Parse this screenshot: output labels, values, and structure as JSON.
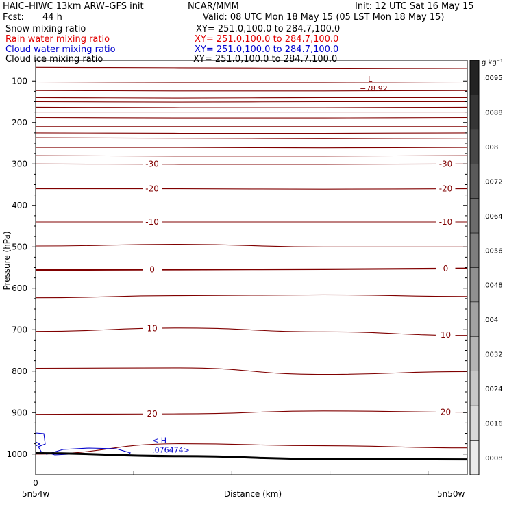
{
  "header": {
    "model": "HAIC–HIWC 13km ARW–GFS init",
    "org": "NCAR/MMM",
    "init": "Init: 12 UTC Sat 16 May 15",
    "fcst_label": "Fcst:",
    "fcst_value": "44 h",
    "valid": "Valid: 08 UTC Mon 18 May 15 (05 LST Mon 18 May 15)"
  },
  "fields": [
    {
      "name": "Snow mixing ratio",
      "xy": "XY= 251.0,100.0 to 284.7,100.0",
      "color": "#000000"
    },
    {
      "name": "Rain water mixing ratio",
      "xy": "XY= 251.0,100.0 to 284.7,100.0",
      "color": "#e00000"
    },
    {
      "name": "Cloud water mixing ratio",
      "xy": "XY= 251.0,100.0 to 284.7,100.0",
      "color": "#0000cc"
    },
    {
      "name": "Cloud ice mixing ratio",
      "xy": "XY= 251.0,100.0 to 284.7,100.0",
      "color": "#000000"
    }
  ],
  "chart_data": {
    "type": "contour",
    "ylabel": "Pressure (hPa)",
    "xlabel": "Distance (km)",
    "yticks": [
      100,
      200,
      300,
      400,
      500,
      600,
      700,
      800,
      900,
      1000
    ],
    "ylim": [
      1050,
      50
    ],
    "xlim": [
      0,
      1
    ],
    "x_origin_label": "0",
    "x_left_label": "5n54w",
    "x_right_label": "5n50w",
    "colorbar": {
      "unit": "g kg⁻¹",
      "levels": [
        ".0095",
        ".0088",
        ".008",
        ".0072",
        ".0064",
        ".0056",
        ".0048",
        ".004",
        ".0032",
        ".0024",
        ".0016",
        ".0008"
      ]
    },
    "isotherms": [
      {
        "p": [
          67,
          68,
          69,
          70
        ]
      },
      {
        "p": [
          102,
          103,
          103,
          102
        ]
      },
      {
        "p": [
          123,
          124,
          124,
          123
        ]
      },
      {
        "p": [
          140,
          141,
          140,
          140
        ]
      },
      {
        "p": [
          150,
          151,
          150,
          150
        ]
      },
      {
        "p": [
          163,
          164,
          164,
          163
        ]
      },
      {
        "p": [
          175,
          175,
          175,
          175
        ]
      },
      {
        "p": [
          188,
          189,
          189,
          188
        ]
      },
      {
        "p": [
          210,
          210,
          210,
          210
        ]
      },
      {
        "p": [
          225,
          226,
          226,
          225
        ]
      },
      {
        "p": [
          237,
          238,
          239,
          238
        ]
      },
      {
        "p": [
          260,
          260,
          261,
          260
        ]
      },
      {
        "p": [
          280,
          281,
          281,
          280
        ]
      },
      {
        "label": "-30",
        "p": [
          300,
          301,
          301,
          300
        ]
      },
      {
        "label": "-20",
        "p": [
          360,
          360,
          361,
          360
        ]
      },
      {
        "label": "-10",
        "p": [
          440,
          440,
          440,
          440
        ]
      },
      {
        "p": [
          498,
          494,
          500,
          500
        ]
      },
      {
        "label": "0",
        "p": [
          556,
          555,
          554,
          552
        ],
        "bold": true
      },
      {
        "p": [
          623,
          618,
          616,
          620
        ]
      },
      {
        "label": "10",
        "p": [
          704,
          696,
          705,
          714
        ]
      },
      {
        "p": [
          793,
          792,
          808,
          801
        ]
      },
      {
        "label": "20",
        "p": [
          904,
          903,
          896,
          899
        ]
      },
      {
        "p": [
          1000,
          975,
          980,
          985
        ]
      }
    ],
    "surface_hpa": [
      998,
      1005,
      1012,
      1013
    ],
    "annotations": [
      {
        "text": "L",
        "value": "−78.92",
        "x": 0.77,
        "p": 88,
        "color": "#800000"
      },
      {
        "text": "< H",
        "value": ".076474>",
        "x": 0.27,
        "p": 960,
        "color": "#0000cc"
      }
    ],
    "cloud_water_contour_color": "#0000cc",
    "isotherm_color": "#800000"
  }
}
